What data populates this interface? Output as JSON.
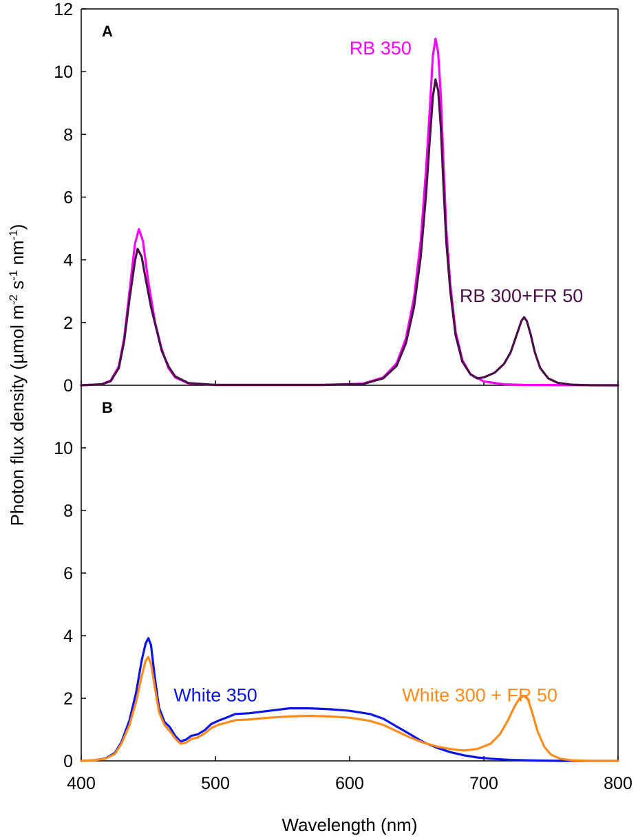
{
  "chart_data": {
    "type": "line",
    "xlabel": "Wavelength (nm)",
    "ylabel_parts": [
      "Photon flux density (µmol m",
      "-2",
      " s",
      "-1",
      " nm",
      "-1",
      ")"
    ],
    "xlim": [
      400,
      800
    ],
    "ylim": [
      0,
      12
    ],
    "x_ticks": [
      400,
      500,
      600,
      700,
      800
    ],
    "y_ticks_A": [
      0,
      2,
      4,
      6,
      8,
      10,
      12
    ],
    "y_ticks_B": [
      0,
      2,
      4,
      6,
      8,
      10
    ],
    "panels": [
      {
        "label": "A",
        "series": [
          {
            "name": "RB 350",
            "color": "#ff00ff",
            "label_at": [
              623,
              10.55
            ],
            "points": [
              [
                400,
                0
              ],
              [
                415,
                0.03
              ],
              [
                422,
                0.15
              ],
              [
                428,
                0.6
              ],
              [
                432,
                1.5
              ],
              [
                436,
                3.0
              ],
              [
                440,
                4.5
              ],
              [
                443,
                4.98
              ],
              [
                446,
                4.6
              ],
              [
                450,
                3.3
              ],
              [
                455,
                2.0
              ],
              [
                460,
                1.15
              ],
              [
                465,
                0.55
              ],
              [
                470,
                0.25
              ],
              [
                480,
                0.06
              ],
              [
                500,
                0.01
              ],
              [
                580,
                0.01
              ],
              [
                610,
                0.05
              ],
              [
                625,
                0.25
              ],
              [
                635,
                0.7
              ],
              [
                642,
                1.5
              ],
              [
                648,
                2.8
              ],
              [
                653,
                4.6
              ],
              [
                657,
                6.9
              ],
              [
                660,
                9.0
              ],
              [
                662,
                10.5
              ],
              [
                664,
                11.05
              ],
              [
                666,
                10.6
              ],
              [
                668,
                9.2
              ],
              [
                670,
                7.0
              ],
              [
                672,
                5.0
              ],
              [
                675,
                3.2
              ],
              [
                679,
                1.7
              ],
              [
                684,
                0.8
              ],
              [
                690,
                0.35
              ],
              [
                700,
                0.12
              ],
              [
                715,
                0.03
              ],
              [
                730,
                0.01
              ],
              [
                800,
                0
              ]
            ]
          },
          {
            "name": "RB 300+FR 50",
            "color": "#4a0f48",
            "label_at": [
              728,
              2.65
            ],
            "points": [
              [
                400,
                0
              ],
              [
                415,
                0.03
              ],
              [
                422,
                0.13
              ],
              [
                428,
                0.55
              ],
              [
                432,
                1.4
              ],
              [
                436,
                2.75
              ],
              [
                440,
                3.95
              ],
              [
                442,
                4.35
              ],
              [
                445,
                4.1
              ],
              [
                448,
                3.4
              ],
              [
                452,
                2.5
              ],
              [
                456,
                1.8
              ],
              [
                460,
                1.1
              ],
              [
                465,
                0.6
              ],
              [
                470,
                0.28
              ],
              [
                480,
                0.07
              ],
              [
                500,
                0.01
              ],
              [
                580,
                0.01
              ],
              [
                610,
                0.04
              ],
              [
                625,
                0.22
              ],
              [
                635,
                0.62
              ],
              [
                642,
                1.35
              ],
              [
                648,
                2.5
              ],
              [
                653,
                4.1
              ],
              [
                657,
                6.1
              ],
              [
                660,
                8.0
              ],
              [
                662,
                9.2
              ],
              [
                664,
                9.75
              ],
              [
                666,
                9.4
              ],
              [
                668,
                8.2
              ],
              [
                670,
                6.3
              ],
              [
                672,
                4.6
              ],
              [
                675,
                3.0
              ],
              [
                679,
                1.6
              ],
              [
                684,
                0.75
              ],
              [
                690,
                0.35
              ],
              [
                695,
                0.22
              ],
              [
                700,
                0.25
              ],
              [
                708,
                0.4
              ],
              [
                715,
                0.68
              ],
              [
                720,
                1.05
              ],
              [
                724,
                1.55
              ],
              [
                728,
                2.05
              ],
              [
                730,
                2.17
              ],
              [
                732,
                2.05
              ],
              [
                735,
                1.6
              ],
              [
                738,
                1.05
              ],
              [
                742,
                0.55
              ],
              [
                748,
                0.22
              ],
              [
                755,
                0.08
              ],
              [
                765,
                0.02
              ],
              [
                780,
                0
              ],
              [
                800,
                0
              ]
            ]
          }
        ]
      },
      {
        "label": "B",
        "series": [
          {
            "name": "White 350",
            "color": "#0a14e6",
            "label_at": [
              500,
              1.9
            ],
            "points": [
              [
                400,
                0
              ],
              [
                410,
                0.02
              ],
              [
                418,
                0.08
              ],
              [
                425,
                0.25
              ],
              [
                430,
                0.6
              ],
              [
                436,
                1.3
              ],
              [
                441,
                2.2
              ],
              [
                445,
                3.2
              ],
              [
                448,
                3.75
              ],
              [
                450,
                3.92
              ],
              [
                452,
                3.7
              ],
              [
                455,
                2.6
              ],
              [
                458,
                1.7
              ],
              [
                462,
                1.25
              ],
              [
                466,
                1.08
              ],
              [
                470,
                0.8
              ],
              [
                474,
                0.62
              ],
              [
                478,
                0.68
              ],
              [
                482,
                0.8
              ],
              [
                487,
                0.85
              ],
              [
                492,
                0.98
              ],
              [
                497,
                1.18
              ],
              [
                502,
                1.28
              ],
              [
                508,
                1.38
              ],
              [
                515,
                1.5
              ],
              [
                525,
                1.52
              ],
              [
                540,
                1.6
              ],
              [
                555,
                1.68
              ],
              [
                570,
                1.68
              ],
              [
                585,
                1.65
              ],
              [
                600,
                1.6
              ],
              [
                615,
                1.5
              ],
              [
                625,
                1.35
              ],
              [
                635,
                1.1
              ],
              [
                645,
                0.85
              ],
              [
                655,
                0.6
              ],
              [
                665,
                0.42
              ],
              [
                675,
                0.28
              ],
              [
                685,
                0.18
              ],
              [
                695,
                0.11
              ],
              [
                705,
                0.07
              ],
              [
                720,
                0.03
              ],
              [
                740,
                0.01
              ],
              [
                760,
                0
              ],
              [
                800,
                0
              ]
            ]
          },
          {
            "name": "White 300 + FR 50",
            "color": "#ff8c1a",
            "label_at": [
              697,
              1.9
            ],
            "points": [
              [
                400,
                0
              ],
              [
                410,
                0.02
              ],
              [
                418,
                0.07
              ],
              [
                425,
                0.22
              ],
              [
                430,
                0.55
              ],
              [
                436,
                1.15
              ],
              [
                441,
                1.9
              ],
              [
                445,
                2.7
              ],
              [
                448,
                3.2
              ],
              [
                450,
                3.32
              ],
              [
                452,
                3.1
              ],
              [
                455,
                2.3
              ],
              [
                458,
                1.55
              ],
              [
                462,
                1.15
              ],
              [
                466,
                0.95
              ],
              [
                470,
                0.72
              ],
              [
                474,
                0.55
              ],
              [
                478,
                0.58
              ],
              [
                482,
                0.7
              ],
              [
                487,
                0.75
              ],
              [
                492,
                0.88
              ],
              [
                497,
                1.05
              ],
              [
                502,
                1.15
              ],
              [
                508,
                1.22
              ],
              [
                515,
                1.3
              ],
              [
                525,
                1.32
              ],
              [
                540,
                1.38
              ],
              [
                555,
                1.42
              ],
              [
                570,
                1.44
              ],
              [
                585,
                1.42
              ],
              [
                600,
                1.38
              ],
              [
                615,
                1.28
              ],
              [
                625,
                1.15
              ],
              [
                635,
                0.95
              ],
              [
                645,
                0.75
              ],
              [
                655,
                0.58
              ],
              [
                665,
                0.46
              ],
              [
                675,
                0.38
              ],
              [
                685,
                0.33
              ],
              [
                695,
                0.38
              ],
              [
                705,
                0.55
              ],
              [
                712,
                0.85
              ],
              [
                718,
                1.3
              ],
              [
                723,
                1.75
              ],
              [
                727,
                2.02
              ],
              [
                730,
                2.08
              ],
              [
                733,
                1.95
              ],
              [
                736,
                1.55
              ],
              [
                740,
                0.95
              ],
              [
                745,
                0.45
              ],
              [
                750,
                0.2
              ],
              [
                757,
                0.07
              ],
              [
                765,
                0.02
              ],
              [
                780,
                0
              ],
              [
                800,
                0
              ]
            ]
          }
        ]
      }
    ]
  }
}
